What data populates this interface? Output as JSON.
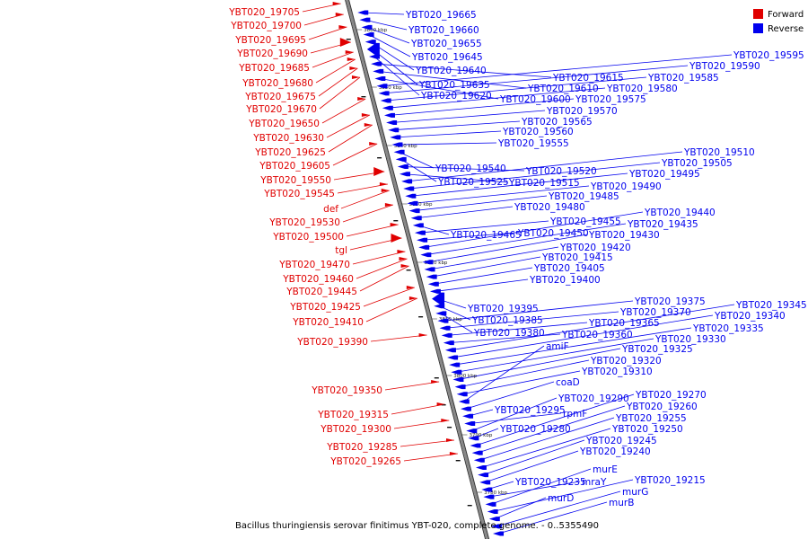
{
  "colors": {
    "forward": "#e00000",
    "reverse": "#0000ee",
    "axis": "#888888",
    "axis_edge": "#333333",
    "text": "#000000"
  },
  "legend": {
    "forward": "Forward",
    "reverse": "Reverse"
  },
  "caption": "Bacillus thuringiensis serovar finitimus YBT-020, complete genome. - 0..5355490",
  "ticks": [
    "3860 kbp",
    "3850 kbp",
    "3840 kbp",
    "3830 kbp",
    "3820 kbp",
    "3810 kbp",
    "3800 kbp",
    "3790 kbp",
    "3780 kbp"
  ],
  "forward_labels": [
    "YBT020_19705",
    "YBT020_19700",
    "YBT020_19695",
    "YBT020_19690",
    "YBT020_19685",
    "YBT020_19680",
    "YBT020_19675",
    "YBT020_19670",
    "YBT020_19650",
    "YBT020_19630",
    "YBT020_19625",
    "YBT020_19605",
    "YBT020_19550",
    "YBT020_19545",
    "def",
    "YBT020_19530",
    "YBT020_19500",
    "tgl",
    "YBT020_19470",
    "YBT020_19460",
    "YBT020_19445",
    "YBT020_19425",
    "YBT020_19410",
    "YBT020_19390",
    "YBT020_19350",
    "YBT020_19315",
    "YBT020_19300",
    "YBT020_19285",
    "YBT020_19265"
  ],
  "reverse_labels": [
    "YBT020_19665",
    "YBT020_19660",
    "YBT020_19655",
    "YBT020_19645",
    "YBT020_19640",
    "YBT020_19635",
    "YBT020_19620",
    "YBT020_19615",
    "YBT020_19610",
    "YBT020_19600",
    "YBT020_19595",
    "YBT020_19590",
    "YBT020_19585",
    "YBT020_19580",
    "YBT020_19575",
    "YBT020_19570",
    "YBT020_19565",
    "YBT020_19560",
    "YBT020_19555",
    "YBT020_19540",
    "YBT020_19525",
    "YBT020_19520",
    "YBT020_19515",
    "YBT020_19510",
    "YBT020_19505",
    "YBT020_19495",
    "YBT020_19490",
    "YBT020_19485",
    "YBT020_19480",
    "YBT020_19465",
    "YBT020_19455",
    "YBT020_19450",
    "YBT020_19440",
    "YBT020_19435",
    "YBT020_19430",
    "YBT020_19420",
    "YBT020_19415",
    "YBT020_19405",
    "YBT020_19400",
    "YBT020_19395",
    "YBT020_19385",
    "YBT020_19380",
    "YBT020_19375",
    "YBT020_19370",
    "YBT020_19365",
    "YBT020_19360",
    "YBT020_19345",
    "YBT020_19340",
    "YBT020_19335",
    "YBT020_19330",
    "YBT020_19325",
    "YBT020_19320",
    "YBT020_19310",
    "amiF",
    "coaD",
    "YBT020_19295",
    "rpmF",
    "YBT020_19290",
    "YBT020_19280",
    "YBT020_19270",
    "YBT020_19260",
    "YBT020_19255",
    "YBT020_19250",
    "YBT020_19245",
    "YBT020_19240",
    "YBT020_19235",
    "mraY",
    "murE",
    "YBT020_19215",
    "murD",
    "murG",
    "murB"
  ]
}
